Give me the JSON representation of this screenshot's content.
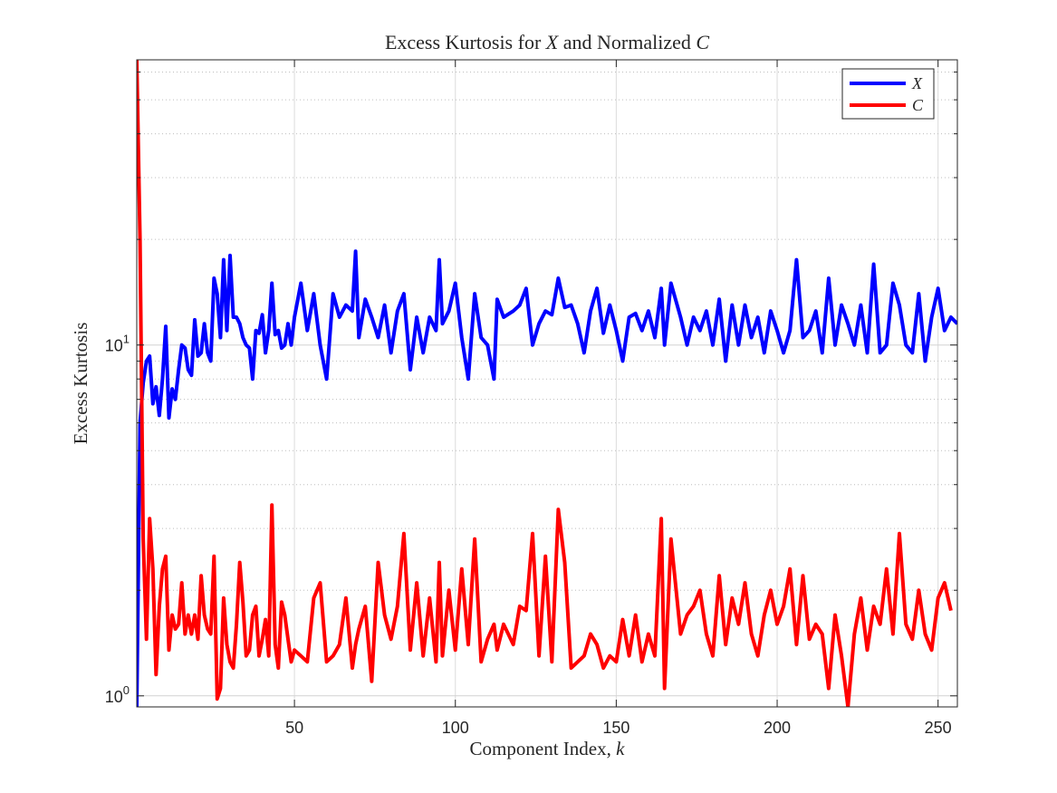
{
  "chart_data": {
    "type": "line",
    "title_parts": [
      {
        "text": "Excess Kurtosis for ",
        "italic": false
      },
      {
        "text": "X",
        "italic": true
      },
      {
        "text": " and Normalized ",
        "italic": false
      },
      {
        "text": "C",
        "italic": true
      }
    ],
    "xlabel_parts": [
      {
        "text": "Component Index, ",
        "italic": false
      },
      {
        "text": "k",
        "italic": true
      }
    ],
    "ylabel": "Excess Kurtosis",
    "yscale": "log",
    "xlim": [
      1,
      256
    ],
    "ylim": [
      0.93,
      65
    ],
    "xticks": [
      50,
      100,
      150,
      200,
      250
    ],
    "xtick_labels": [
      "50",
      "100",
      "150",
      "200",
      "250"
    ],
    "yticks_major": [
      {
        "value": 1,
        "base": "10",
        "exp": "0"
      },
      {
        "value": 10,
        "base": "10",
        "exp": "1"
      }
    ],
    "grid": true,
    "legend_position": "top-right",
    "x_keypoints": [
      1,
      2,
      3,
      4,
      5,
      6,
      7,
      8,
      9,
      10,
      11,
      12,
      13,
      14,
      15,
      16,
      17,
      18,
      19,
      20,
      21,
      22,
      23,
      24,
      25,
      26,
      27,
      28,
      29,
      30,
      31,
      32,
      33,
      34,
      35,
      36,
      37,
      38,
      39,
      40,
      41,
      42,
      43,
      44,
      45,
      46,
      47,
      48,
      49,
      50,
      52,
      54,
      56,
      58,
      60,
      62,
      64,
      66,
      68,
      69,
      70,
      72,
      74,
      76,
      78,
      80,
      82,
      84,
      86,
      88,
      90,
      92,
      94,
      95,
      96,
      98,
      100,
      102,
      104,
      106,
      108,
      110,
      112,
      113,
      115,
      118,
      120,
      122,
      124,
      126,
      128,
      130,
      132,
      134,
      136,
      138,
      140,
      142,
      144,
      146,
      148,
      150,
      152,
      154,
      156,
      158,
      160,
      162,
      164,
      165,
      167,
      170,
      172,
      174,
      176,
      178,
      180,
      182,
      184,
      186,
      188,
      190,
      192,
      194,
      196,
      198,
      200,
      202,
      204,
      206,
      208,
      210,
      212,
      214,
      216,
      218,
      220,
      222,
      224,
      226,
      228,
      230,
      232,
      234,
      236,
      238,
      240,
      242,
      244,
      246,
      248,
      250,
      252,
      254,
      256
    ],
    "series": [
      {
        "name": "X",
        "color": "#0000ff",
        "values": [
          0.93,
          6.0,
          7.8,
          9.0,
          9.3,
          6.8,
          7.6,
          6.3,
          8.0,
          11.3,
          6.2,
          7.5,
          7.0,
          8.5,
          10.0,
          9.8,
          8.5,
          8.2,
          11.8,
          9.3,
          9.5,
          11.5,
          9.5,
          9.0,
          15.5,
          14.0,
          10.5,
          17.5,
          11.0,
          18.0,
          12.0,
          12.0,
          11.5,
          10.5,
          10.0,
          9.8,
          8.0,
          11.0,
          10.8,
          12.2,
          9.5,
          11.0,
          15.0,
          10.7,
          11.0,
          9.8,
          10.0,
          11.5,
          10.0,
          12.0,
          15.0,
          11.0,
          14.0,
          10.0,
          8.0,
          14.0,
          12.0,
          13.0,
          12.5,
          18.5,
          10.5,
          13.5,
          12.0,
          10.5,
          13.0,
          9.5,
          12.5,
          14.0,
          8.5,
          12.0,
          9.5,
          12.0,
          11.0,
          17.5,
          11.5,
          12.5,
          15.0,
          10.5,
          8.0,
          14.0,
          10.5,
          10.0,
          8.0,
          13.5,
          12.0,
          12.5,
          13.0,
          14.5,
          10.0,
          11.5,
          12.5,
          12.2,
          15.5,
          12.8,
          13.0,
          11.5,
          9.5,
          12.5,
          14.5,
          10.8,
          13.0,
          11.0,
          9.0,
          12.0,
          12.3,
          11.0,
          12.5,
          10.5,
          14.5,
          10.0,
          15.0,
          12.0,
          10.0,
          12.0,
          11.0,
          12.5,
          10.0,
          13.5,
          9.0,
          13.0,
          10.0,
          13.0,
          10.5,
          12.0,
          9.5,
          12.5,
          11.0,
          9.5,
          11.0,
          17.5,
          10.5,
          11.0,
          12.5,
          9.5,
          15.5,
          10.0,
          13.0,
          11.5,
          10.0,
          13.0,
          9.5,
          17.0,
          9.5,
          10.0,
          15.0,
          13.0,
          10.0,
          9.5,
          14.0,
          9.0,
          12.0,
          14.5,
          11.0,
          12.0,
          11.5
        ]
      },
      {
        "name": "C",
        "color": "#ff0000",
        "values": [
          65.0,
          20.0,
          2.8,
          1.45,
          3.2,
          2.3,
          1.15,
          1.8,
          2.3,
          2.5,
          1.35,
          1.7,
          1.55,
          1.6,
          2.1,
          1.5,
          1.7,
          1.5,
          1.7,
          1.45,
          2.2,
          1.7,
          1.55,
          1.5,
          2.5,
          0.98,
          1.05,
          1.9,
          1.4,
          1.25,
          1.2,
          1.6,
          2.4,
          1.85,
          1.3,
          1.35,
          1.7,
          1.8,
          1.3,
          1.45,
          1.65,
          1.3,
          3.5,
          1.4,
          1.2,
          1.85,
          1.7,
          1.45,
          1.25,
          1.35,
          1.3,
          1.25,
          1.9,
          2.1,
          1.25,
          1.3,
          1.4,
          1.9,
          1.2,
          1.4,
          1.55,
          1.8,
          1.1,
          2.4,
          1.7,
          1.45,
          1.8,
          2.9,
          1.35,
          2.1,
          1.3,
          1.9,
          1.25,
          2.4,
          1.3,
          2.0,
          1.35,
          2.3,
          1.4,
          2.8,
          1.25,
          1.45,
          1.6,
          1.35,
          1.6,
          1.4,
          1.8,
          1.75,
          2.9,
          1.3,
          2.5,
          1.25,
          3.4,
          2.4,
          1.2,
          1.25,
          1.3,
          1.5,
          1.4,
          1.2,
          1.3,
          1.25,
          1.65,
          1.3,
          1.7,
          1.25,
          1.5,
          1.3,
          3.2,
          1.05,
          2.8,
          1.5,
          1.7,
          1.8,
          2.0,
          1.5,
          1.3,
          2.2,
          1.4,
          1.9,
          1.6,
          2.1,
          1.5,
          1.3,
          1.7,
          2.0,
          1.6,
          1.8,
          2.3,
          1.4,
          2.2,
          1.45,
          1.6,
          1.5,
          1.05,
          1.7,
          1.3,
          0.93,
          1.5,
          1.9,
          1.35,
          1.8,
          1.6,
          2.3,
          1.5,
          2.9,
          1.6,
          1.45,
          2.0,
          1.5,
          1.35,
          1.9,
          2.1,
          1.75
        ]
      }
    ]
  }
}
